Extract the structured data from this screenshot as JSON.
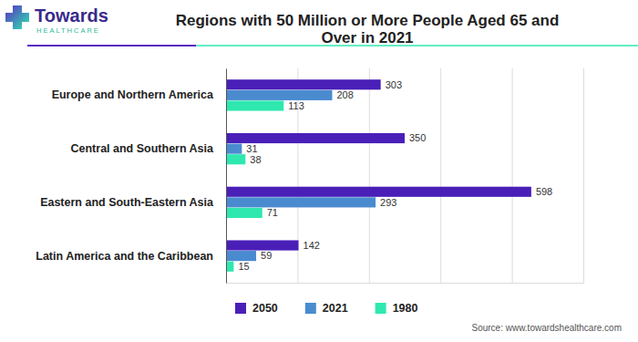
{
  "chart_data": {
    "type": "bar",
    "orientation": "horizontal",
    "title": "Regions with 50 Million or More People Aged 65 and Over in 2021",
    "logo": [
      "Towards",
      "HEALTHCARE"
    ],
    "source": "Source: www.towardshealthcare.com",
    "categories": [
      "Europe and Northern America",
      "Central and Southern Asia",
      "Eastern and South-Eastern Asia",
      "Latin America and the Caribbean"
    ],
    "series": [
      {
        "name": "2050",
        "color": "#4a1fb8",
        "values": [
          303,
          350,
          598,
          142
        ]
      },
      {
        "name": "2021",
        "color": "#4a8bd0",
        "values": [
          208,
          31,
          293,
          59
        ]
      },
      {
        "name": "1980",
        "color": "#2ee8b0",
        "values": [
          113,
          38,
          71,
          15
        ]
      }
    ],
    "xlim": [
      0,
      700
    ],
    "xticks": [
      0,
      140,
      280,
      420,
      560,
      700
    ],
    "tick_labels": "y",
    "grid": true,
    "data_labels": true,
    "legend": "bottom"
  }
}
